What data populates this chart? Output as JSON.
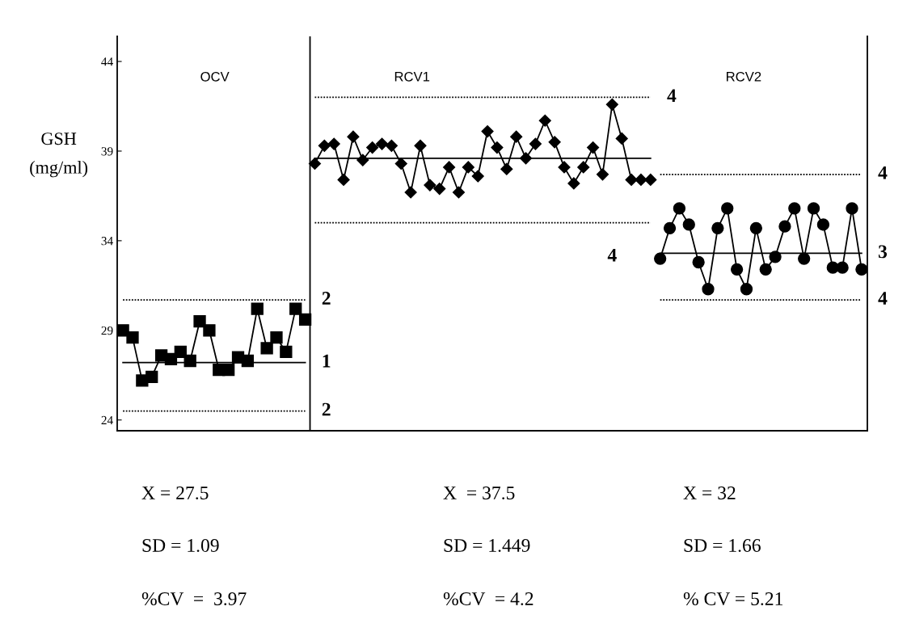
{
  "chart_data": {
    "type": "line",
    "ylabel": "GSH\n(mg/ml)",
    "categories": [
      null,
      null,
      null,
      null,
      null,
      null,
      null,
      null,
      null,
      null,
      null,
      null,
      null,
      null,
      null,
      null,
      null,
      null,
      null,
      null,
      null,
      null,
      null,
      null,
      null,
      null,
      null,
      null,
      null,
      null,
      null,
      null,
      null,
      null,
      null,
      null,
      null,
      null,
      null,
      null,
      null,
      null,
      null,
      null,
      null,
      null,
      null,
      null,
      null,
      null,
      null,
      null,
      null,
      null,
      null,
      null,
      null,
      null,
      null,
      null,
      null,
      null,
      null,
      null,
      null,
      null,
      null,
      null,
      null,
      null,
      null,
      null,
      null,
      null,
      null,
      null,
      null,
      null
    ],
    "ylim": [
      23.4,
      45.4
    ],
    "yticks": [
      24,
      29,
      34,
      39,
      44
    ],
    "tick_labels": "y",
    "grid": false,
    "legend": false,
    "series": [
      {
        "color": "#000000",
        "marker": "square",
        "values": [
          29.0,
          28.6,
          26.2,
          26.4,
          27.6,
          27.4,
          27.8,
          27.3,
          29.5,
          29.0,
          26.8,
          26.8,
          27.5,
          27.3,
          30.2,
          28.0,
          28.6,
          27.8,
          30.2,
          29.6,
          null,
          null,
          null,
          null,
          null,
          null,
          null,
          null,
          null,
          null,
          null,
          null,
          null,
          null,
          null,
          null,
          null,
          null,
          null,
          null,
          null,
          null,
          null,
          null,
          null,
          null,
          null,
          null,
          null,
          null,
          null,
          null,
          null,
          null,
          null,
          null,
          null,
          null,
          null,
          null,
          null,
          null,
          null,
          null,
          null,
          null,
          null,
          null,
          null,
          null,
          null,
          null,
          null,
          null,
          null,
          null,
          null,
          null
        ]
      },
      {
        "color": "#000000",
        "marker": "diamond",
        "values": [
          null,
          null,
          null,
          null,
          null,
          null,
          null,
          null,
          null,
          null,
          null,
          null,
          null,
          null,
          null,
          null,
          null,
          null,
          null,
          null,
          38.3,
          39.3,
          39.4,
          37.4,
          39.8,
          38.5,
          39.2,
          39.4,
          39.3,
          38.3,
          36.7,
          39.3,
          37.1,
          36.9,
          38.1,
          36.7,
          38.1,
          37.6,
          40.1,
          39.2,
          38.0,
          39.8,
          38.6,
          39.4,
          40.7,
          39.5,
          38.1,
          37.2,
          38.1,
          39.2,
          37.7,
          41.6,
          39.7,
          37.4,
          37.4,
          37.4,
          null,
          null,
          null,
          null,
          null,
          null,
          null,
          null,
          null,
          null,
          null,
          null,
          null,
          null,
          null,
          null,
          null,
          null,
          null,
          null,
          null,
          null
        ]
      },
      {
        "color": "#000000",
        "marker": "circle",
        "values": [
          null,
          null,
          null,
          null,
          null,
          null,
          null,
          null,
          null,
          null,
          null,
          null,
          null,
          null,
          null,
          null,
          null,
          null,
          null,
          null,
          null,
          null,
          null,
          null,
          null,
          null,
          null,
          null,
          null,
          null,
          null,
          null,
          null,
          null,
          null,
          null,
          null,
          null,
          null,
          null,
          null,
          null,
          null,
          null,
          null,
          null,
          null,
          null,
          null,
          null,
          null,
          null,
          null,
          null,
          null,
          null,
          33.0,
          34.7,
          35.8,
          34.9,
          32.8,
          31.3,
          34.7,
          35.8,
          32.4,
          31.3,
          34.7,
          32.4,
          33.1,
          34.8,
          35.8,
          33.0,
          35.8,
          34.9,
          32.5,
          32.5,
          35.8,
          32.4
        ]
      },
      {
        "name": "1",
        "color": "#000000",
        "marker": "none",
        "line_style": "solid",
        "values": [
          27.2,
          27.2,
          27.2,
          27.2,
          27.2,
          27.2,
          27.2,
          27.2,
          27.2,
          27.2,
          27.2,
          27.2,
          27.2,
          27.2,
          27.2,
          27.2,
          27.2,
          27.2,
          27.2,
          27.2,
          null,
          null,
          null,
          null,
          null,
          null,
          null,
          null,
          null,
          null,
          null,
          null,
          null,
          null,
          null,
          null,
          null,
          null,
          null,
          null,
          null,
          null,
          null,
          null,
          null,
          null,
          null,
          null,
          null,
          null,
          null,
          null,
          null,
          null,
          null,
          null,
          null,
          null,
          null,
          null,
          null,
          null,
          null,
          null,
          null,
          null,
          null,
          null,
          null,
          null,
          null,
          null,
          null,
          null,
          null,
          null,
          null,
          null
        ]
      },
      {
        "name": "2",
        "color": "#000000",
        "marker": "none",
        "line_style": "dotted",
        "values": [
          30.7,
          30.7,
          30.7,
          30.7,
          30.7,
          30.7,
          30.7,
          30.7,
          30.7,
          30.7,
          30.7,
          30.7,
          30.7,
          30.7,
          30.7,
          30.7,
          30.7,
          30.7,
          30.7,
          30.7,
          null,
          null,
          null,
          null,
          null,
          null,
          null,
          null,
          null,
          null,
          null,
          null,
          null,
          null,
          null,
          null,
          null,
          null,
          null,
          null,
          null,
          null,
          null,
          null,
          null,
          null,
          null,
          null,
          null,
          null,
          null,
          null,
          null,
          null,
          null,
          null,
          null,
          null,
          null,
          null,
          null,
          null,
          null,
          null,
          null,
          null,
          null,
          null,
          null,
          null,
          null,
          null,
          null,
          null,
          null,
          null,
          null,
          null
        ]
      },
      {
        "name": "2",
        "color": "#000000",
        "marker": "none",
        "line_style": "dotted",
        "values": [
          24.5,
          24.5,
          24.5,
          24.5,
          24.5,
          24.5,
          24.5,
          24.5,
          24.5,
          24.5,
          24.5,
          24.5,
          24.5,
          24.5,
          24.5,
          24.5,
          24.5,
          24.5,
          24.5,
          24.5,
          null,
          null,
          null,
          null,
          null,
          null,
          null,
          null,
          null,
          null,
          null,
          null,
          null,
          null,
          null,
          null,
          null,
          null,
          null,
          null,
          null,
          null,
          null,
          null,
          null,
          null,
          null,
          null,
          null,
          null,
          null,
          null,
          null,
          null,
          null,
          null,
          null,
          null,
          null,
          null,
          null,
          null,
          null,
          null,
          null,
          null,
          null,
          null,
          null,
          null,
          null,
          null,
          null,
          null,
          null,
          null,
          null,
          null
        ]
      },
      {
        "color": "#000000",
        "marker": "none",
        "line_style": "solid",
        "values": [
          null,
          null,
          null,
          null,
          null,
          null,
          null,
          null,
          null,
          null,
          null,
          null,
          null,
          null,
          null,
          null,
          null,
          null,
          null,
          null,
          38.6,
          38.6,
          38.6,
          38.6,
          38.6,
          38.6,
          38.6,
          38.6,
          38.6,
          38.6,
          38.6,
          38.6,
          38.6,
          38.6,
          38.6,
          38.6,
          38.6,
          38.6,
          38.6,
          38.6,
          38.6,
          38.6,
          38.6,
          38.6,
          38.6,
          38.6,
          38.6,
          38.6,
          38.6,
          38.6,
          38.6,
          38.6,
          38.6,
          38.6,
          38.6,
          38.6,
          null,
          null,
          null,
          null,
          null,
          null,
          null,
          null,
          null,
          null,
          null,
          null,
          null,
          null,
          null,
          null,
          null,
          null,
          null,
          null,
          null,
          null
        ]
      },
      {
        "name": "4",
        "color": "#000000",
        "marker": "none",
        "line_style": "dotted",
        "values": [
          null,
          null,
          null,
          null,
          null,
          null,
          null,
          null,
          null,
          null,
          null,
          null,
          null,
          null,
          null,
          null,
          null,
          null,
          null,
          null,
          42.0,
          42.0,
          42.0,
          42.0,
          42.0,
          42.0,
          42.0,
          42.0,
          42.0,
          42.0,
          42.0,
          42.0,
          42.0,
          42.0,
          42.0,
          42.0,
          42.0,
          42.0,
          42.0,
          42.0,
          42.0,
          42.0,
          42.0,
          42.0,
          42.0,
          42.0,
          42.0,
          42.0,
          42.0,
          42.0,
          42.0,
          42.0,
          42.0,
          42.0,
          42.0,
          42.0,
          null,
          null,
          null,
          null,
          null,
          null,
          null,
          null,
          null,
          null,
          null,
          null,
          null,
          null,
          null,
          null,
          null,
          null,
          null,
          null,
          null,
          null
        ]
      },
      {
        "name": "4",
        "color": "#000000",
        "marker": "none",
        "line_style": "dotted",
        "values": [
          null,
          null,
          null,
          null,
          null,
          null,
          null,
          null,
          null,
          null,
          null,
          null,
          null,
          null,
          null,
          null,
          null,
          null,
          null,
          null,
          35.0,
          35.0,
          35.0,
          35.0,
          35.0,
          35.0,
          35.0,
          35.0,
          35.0,
          35.0,
          35.0,
          35.0,
          35.0,
          35.0,
          35.0,
          35.0,
          35.0,
          35.0,
          35.0,
          35.0,
          35.0,
          35.0,
          35.0,
          35.0,
          35.0,
          35.0,
          35.0,
          35.0,
          35.0,
          35.0,
          35.0,
          35.0,
          35.0,
          35.0,
          35.0,
          35.0,
          null,
          null,
          null,
          null,
          null,
          null,
          null,
          null,
          null,
          null,
          null,
          null,
          null,
          null,
          null,
          null,
          null,
          null,
          null,
          null,
          null,
          null
        ]
      },
      {
        "name": "3",
        "color": "#000000",
        "marker": "none",
        "line_style": "solid",
        "values": [
          null,
          null,
          null,
          null,
          null,
          null,
          null,
          null,
          null,
          null,
          null,
          null,
          null,
          null,
          null,
          null,
          null,
          null,
          null,
          null,
          null,
          null,
          null,
          null,
          null,
          null,
          null,
          null,
          null,
          null,
          null,
          null,
          null,
          null,
          null,
          null,
          null,
          null,
          null,
          null,
          null,
          null,
          null,
          null,
          null,
          null,
          null,
          null,
          null,
          null,
          null,
          null,
          null,
          null,
          null,
          null,
          33.3,
          33.3,
          33.3,
          33.3,
          33.3,
          33.3,
          33.3,
          33.3,
          33.3,
          33.3,
          33.3,
          33.3,
          33.3,
          33.3,
          33.3,
          33.3,
          33.3,
          33.3,
          33.3,
          33.3,
          33.3,
          33.3
        ]
      },
      {
        "name": "4",
        "color": "#000000",
        "marker": "none",
        "line_style": "dotted",
        "values": [
          null,
          null,
          null,
          null,
          null,
          null,
          null,
          null,
          null,
          null,
          null,
          null,
          null,
          null,
          null,
          null,
          null,
          null,
          null,
          null,
          null,
          null,
          null,
          null,
          null,
          null,
          null,
          null,
          null,
          null,
          null,
          null,
          null,
          null,
          null,
          null,
          null,
          null,
          null,
          null,
          null,
          null,
          null,
          null,
          null,
          null,
          null,
          null,
          null,
          null,
          null,
          null,
          null,
          null,
          null,
          null,
          37.7,
          37.7,
          37.7,
          37.7,
          37.7,
          37.7,
          37.7,
          37.7,
          37.7,
          37.7,
          37.7,
          37.7,
          37.7,
          37.7,
          37.7,
          37.7,
          37.7,
          37.7,
          37.7,
          37.7,
          37.7,
          37.7
        ]
      },
      {
        "name": "4",
        "color": "#000000",
        "marker": "none",
        "line_style": "dotted",
        "values": [
          null,
          null,
          null,
          null,
          null,
          null,
          null,
          null,
          null,
          null,
          null,
          null,
          null,
          null,
          null,
          null,
          null,
          null,
          null,
          null,
          null,
          null,
          null,
          null,
          null,
          null,
          null,
          null,
          null,
          null,
          null,
          null,
          null,
          null,
          null,
          null,
          null,
          null,
          null,
          null,
          null,
          null,
          null,
          null,
          null,
          null,
          null,
          null,
          null,
          null,
          null,
          null,
          null,
          null,
          null,
          null,
          30.7,
          30.7,
          30.7,
          30.7,
          30.7,
          30.7,
          30.7,
          30.7,
          30.7,
          30.7,
          30.7,
          30.7,
          30.7,
          30.7,
          30.7,
          30.7,
          30.7,
          30.7,
          30.7,
          30.7,
          30.7,
          30.7
        ]
      }
    ],
    "annotations": [
      "OCV",
      "RCV1",
      "RCV2",
      "X = 27.5",
      "X  = 37.5",
      "X = 32",
      "SD = 1.09",
      "SD = 1.449",
      "SD = 1.66",
      "%CV  =  3.97",
      "%CV  = 4.2",
      "% CV = 5.21"
    ]
  }
}
